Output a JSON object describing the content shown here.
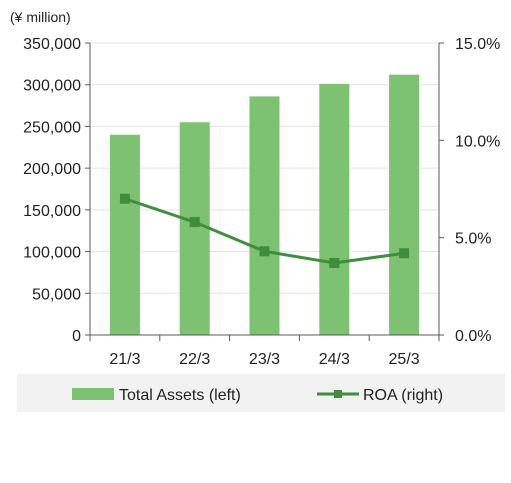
{
  "chart_data": {
    "type": "bar",
    "categories": [
      "21/3",
      "22/3",
      "23/3",
      "24/3",
      "25/3"
    ],
    "y_unit_label": "(¥ million)",
    "y_left_ticks": [
      "0",
      "50,000",
      "100,000",
      "150,000",
      "200,000",
      "250,000",
      "300,000",
      "350,000"
    ],
    "y_right_ticks": [
      "0.0%",
      "5.0%",
      "10.0%",
      "15.0%"
    ],
    "ylim_left": [
      0,
      350000
    ],
    "ylim_right": [
      0,
      15
    ],
    "series": [
      {
        "name": "Total Assets (left)",
        "type": "bar",
        "axis": "left",
        "color": "#7cc270",
        "values": [
          240000,
          255000,
          286000,
          301000,
          312000
        ]
      },
      {
        "name": "ROA (right)",
        "type": "line",
        "axis": "right",
        "color": "#3e8e3e",
        "marker": "square",
        "values": [
          7.0,
          5.8,
          4.3,
          3.7,
          4.2
        ]
      }
    ],
    "grid": true,
    "legend_position": "bottom"
  }
}
